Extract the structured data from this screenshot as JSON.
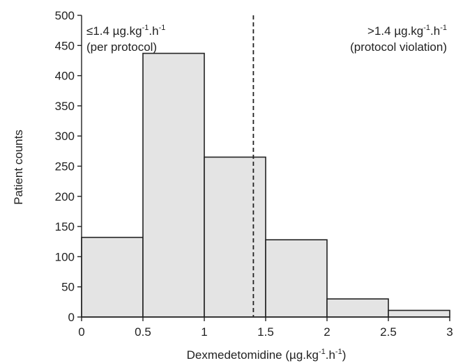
{
  "chart_data": {
    "type": "bar",
    "title": "",
    "xlabel": "Dexmedetomidine (µg.kg-1.h-1)",
    "xlabel_parts": {
      "base": "Dexmedetomidine (µg.kg",
      "sup1": "-1",
      "mid": ".h",
      "sup2": "-1",
      "end": ")"
    },
    "ylabel": "Patient counts",
    "xlim": [
      0,
      3
    ],
    "ylim": [
      0,
      500
    ],
    "xticks": [
      0,
      0.5,
      1,
      1.5,
      2,
      2.5,
      3
    ],
    "xtick_labels": [
      "0",
      "0.5",
      "1",
      "1.5",
      "2",
      "2.5",
      "3"
    ],
    "yticks": [
      0,
      50,
      100,
      150,
      200,
      250,
      300,
      350,
      400,
      450,
      500
    ],
    "ytick_labels": [
      "0",
      "50",
      "100",
      "150",
      "200",
      "250",
      "300",
      "350",
      "400",
      "450",
      "500"
    ],
    "bins": [
      {
        "x0": 0,
        "x1": 0.5,
        "count": 132
      },
      {
        "x0": 0.5,
        "x1": 1,
        "count": 437
      },
      {
        "x0": 1,
        "x1": 1.5,
        "count": 265
      },
      {
        "x0": 1.5,
        "x1": 2,
        "count": 128
      },
      {
        "x0": 2,
        "x1": 2.5,
        "count": 30
      },
      {
        "x0": 2.5,
        "x1": 3,
        "count": 11
      }
    ],
    "bar_fill": "#e4e4e4",
    "threshold": {
      "x": 1.4,
      "style": "dashed"
    },
    "annotations": {
      "left_line1": {
        "base": "≤1.4 µg.kg",
        "sup1": "-1",
        "mid": ".h",
        "sup2": "-1"
      },
      "left_line2": "(per protocol)",
      "right_line1": {
        "base": ">1.4 µg.kg",
        "sup1": "-1",
        "mid": ".h",
        "sup2": "-1"
      },
      "right_line2": "(protocol violation)"
    },
    "grid": false,
    "legend": "none"
  }
}
